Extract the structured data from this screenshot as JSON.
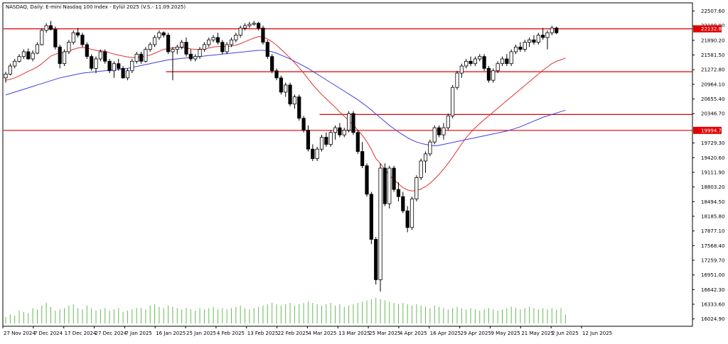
{
  "title": "NASDAQ, Daily: E-mini Nasdaq 100 Index - Eylül 2025 (V.S.- 11.09.2025)",
  "colors": {
    "background": "#ffffff",
    "candle_up_body": "#ffffff",
    "candle_down_body": "#000000",
    "candle_outline": "#000000",
    "ma_fast": "#e23030",
    "ma_slow": "#4040e0",
    "level_line": "#e00000",
    "volume": "#66bb55",
    "price_tag_bg": "#e00000",
    "price_tag_text": "#ffffff",
    "axis": "#000000"
  },
  "chart_data": {
    "type": "candlestick",
    "title": "NASDAQ, Daily: E-mini Nasdaq 100 Index - Eylül 2025 (V.S.- 11.09.2025)",
    "ylim": [
      15870,
      22680
    ],
    "y_ticks": [
      "22507.60",
      "22198.90",
      "21890.20",
      "21581.50",
      "21272.80",
      "20964.10",
      "20655.40",
      "20346.70",
      "19729.30",
      "19420.60",
      "19111.90",
      "18803.20",
      "18494.50",
      "18185.80",
      "17877.10",
      "17568.40",
      "17259.70",
      "16951.00",
      "16642.30",
      "16333.60",
      "16024.90"
    ],
    "x_tick_labels": [
      "27 Nov 2024",
      "7 Dec 2024",
      "17 Dec 2024",
      "27 Dec 2024",
      "7 Jan 2025",
      "16 Jan 2025",
      "25 Jan 2025",
      "4 Feb 2025",
      "13 Feb 2025",
      "22 Feb 2025",
      "4 Mar 2025",
      "13 Mar 2025",
      "25 Mar 2025",
      "4 Apr 2025",
      "16 Apr 2025",
      "29 Apr 2025",
      "9 May 2025",
      "21 May 2025",
      "2 Jun 2025",
      "12 Jun 2025"
    ],
    "price_tags": [
      {
        "value": 22132.8,
        "label": "22132.80"
      },
      {
        "value": 19994.75,
        "label": "19994.75"
      }
    ],
    "level_lines": [
      {
        "value": 22132.8,
        "from_index": 0
      },
      {
        "value": 21230,
        "from_index": 36
      },
      {
        "value": 20330,
        "from_index": 70
      },
      {
        "value": 19994.75,
        "from_index": 0
      }
    ],
    "candles": [
      [
        21100,
        21230,
        21000,
        21180
      ],
      [
        21180,
        21400,
        21150,
        21350
      ],
      [
        21350,
        21500,
        21300,
        21450
      ],
      [
        21450,
        21600,
        21420,
        21550
      ],
      [
        21550,
        21700,
        21500,
        21650
      ],
      [
        21650,
        21720,
        21480,
        21500
      ],
      [
        21500,
        21680,
        21450,
        21620
      ],
      [
        21620,
        21850,
        21600,
        21800
      ],
      [
        21800,
        22150,
        21780,
        22100
      ],
      [
        22100,
        22250,
        22050,
        22200
      ],
      [
        22200,
        22300,
        22100,
        22120
      ],
      [
        22120,
        22180,
        21700,
        21750
      ],
      [
        21750,
        21800,
        21300,
        21400
      ],
      [
        21400,
        21700,
        21350,
        21650
      ],
      [
        21650,
        21900,
        21600,
        21850
      ],
      [
        21850,
        22100,
        21800,
        22050
      ],
      [
        22050,
        22150,
        21950,
        22000
      ],
      [
        22000,
        22050,
        21750,
        21800
      ],
      [
        21800,
        21850,
        21500,
        21550
      ],
      [
        21550,
        21600,
        21250,
        21300
      ],
      [
        21300,
        21550,
        21200,
        21500
      ],
      [
        21500,
        21700,
        21450,
        21650
      ],
      [
        21650,
        21700,
        21400,
        21450
      ],
      [
        21450,
        21500,
        21200,
        21250
      ],
      [
        21250,
        21450,
        21100,
        21400
      ],
      [
        21400,
        21500,
        21250,
        21300
      ],
      [
        21300,
        21350,
        21080,
        21100
      ],
      [
        21100,
        21300,
        21050,
        21250
      ],
      [
        21250,
        21500,
        21200,
        21450
      ],
      [
        21450,
        21650,
        21400,
        21600
      ],
      [
        21600,
        21650,
        21400,
        21450
      ],
      [
        21450,
        21750,
        21420,
        21700
      ],
      [
        21700,
        21850,
        21650,
        21800
      ],
      [
        21800,
        22000,
        21750,
        21950
      ],
      [
        21950,
        22100,
        21900,
        22050
      ],
      [
        22050,
        22080,
        21950,
        22000
      ],
      [
        22000,
        22050,
        21600,
        21650
      ],
      [
        21650,
        21750,
        21050,
        21700
      ],
      [
        21700,
        21800,
        21600,
        21750
      ],
      [
        21750,
        21900,
        21700,
        21850
      ],
      [
        21850,
        21950,
        21550,
        21600
      ],
      [
        21600,
        21700,
        21450,
        21500
      ],
      [
        21500,
        21600,
        21450,
        21550
      ],
      [
        21550,
        21750,
        21500,
        21700
      ],
      [
        21700,
        21850,
        21650,
        21800
      ],
      [
        21800,
        21950,
        21750,
        21900
      ],
      [
        21900,
        22000,
        21850,
        21950
      ],
      [
        21950,
        22050,
        21800,
        21850
      ],
      [
        21850,
        21900,
        21600,
        21650
      ],
      [
        21650,
        21850,
        21600,
        21800
      ],
      [
        21800,
        21950,
        21750,
        21900
      ],
      [
        21900,
        22050,
        21850,
        22000
      ],
      [
        22000,
        22200,
        21950,
        22150
      ],
      [
        22150,
        22250,
        22100,
        22200
      ],
      [
        22200,
        22280,
        22150,
        22230
      ],
      [
        22230,
        22300,
        22200,
        22250
      ],
      [
        22250,
        22280,
        22100,
        22150
      ],
      [
        22150,
        22200,
        21800,
        21850
      ],
      [
        21850,
        21900,
        21500,
        21550
      ],
      [
        21550,
        21600,
        21200,
        21250
      ],
      [
        21250,
        21300,
        21050,
        21100
      ],
      [
        21100,
        21150,
        20750,
        20800
      ],
      [
        20800,
        21000,
        20700,
        20950
      ],
      [
        20950,
        21000,
        20500,
        20550
      ],
      [
        20550,
        20750,
        20450,
        20700
      ],
      [
        20700,
        20750,
        20200,
        20250
      ],
      [
        20250,
        20300,
        19950,
        20000
      ],
      [
        20000,
        20100,
        19550,
        19600
      ],
      [
        19600,
        19700,
        19350,
        19400
      ],
      [
        19400,
        19650,
        19350,
        19600
      ],
      [
        19600,
        19900,
        19550,
        19850
      ],
      [
        19850,
        19950,
        19650,
        19700
      ],
      [
        19700,
        20000,
        19650,
        19950
      ],
      [
        19950,
        20100,
        19800,
        20050
      ],
      [
        20050,
        20150,
        19850,
        19900
      ],
      [
        19900,
        20050,
        19850,
        20000
      ],
      [
        20000,
        20400,
        19950,
        20350
      ],
      [
        20350,
        20400,
        19900,
        19950
      ],
      [
        19950,
        20000,
        19500,
        19550
      ],
      [
        19550,
        19750,
        19200,
        19250
      ],
      [
        19250,
        19300,
        18600,
        18650
      ],
      [
        18650,
        18700,
        17600,
        17700
      ],
      [
        17700,
        17750,
        16750,
        16850
      ],
      [
        16850,
        19300,
        16600,
        19200
      ],
      [
        19200,
        19300,
        18400,
        18450
      ],
      [
        18450,
        19250,
        18350,
        19200
      ],
      [
        19200,
        19250,
        18700,
        18750
      ],
      [
        18750,
        18900,
        18500,
        18600
      ],
      [
        18600,
        18700,
        18250,
        18300
      ],
      [
        18300,
        18400,
        17850,
        17950
      ],
      [
        17950,
        18600,
        17900,
        18550
      ],
      [
        18550,
        19050,
        18500,
        19000
      ],
      [
        19000,
        19400,
        18950,
        19350
      ],
      [
        19350,
        19550,
        19100,
        19500
      ],
      [
        19500,
        19800,
        19450,
        19750
      ],
      [
        19750,
        20100,
        19700,
        20050
      ],
      [
        20050,
        20100,
        19850,
        19900
      ],
      [
        19900,
        20150,
        19800,
        20050
      ],
      [
        20050,
        20350,
        20000,
        20300
      ],
      [
        20300,
        20950,
        20250,
        20900
      ],
      [
        20900,
        21250,
        20850,
        21200
      ],
      [
        21200,
        21400,
        21100,
        21350
      ],
      [
        21350,
        21500,
        21300,
        21450
      ],
      [
        21450,
        21550,
        21350,
        21400
      ],
      [
        21400,
        21550,
        21350,
        21500
      ],
      [
        21500,
        21600,
        21450,
        21550
      ],
      [
        21550,
        21600,
        21250,
        21300
      ],
      [
        21300,
        21350,
        21000,
        21050
      ],
      [
        21050,
        21300,
        21000,
        21250
      ],
      [
        21250,
        21450,
        21200,
        21400
      ],
      [
        21400,
        21550,
        21350,
        21500
      ],
      [
        21500,
        21600,
        21350,
        21400
      ],
      [
        21400,
        21700,
        21350,
        21650
      ],
      [
        21650,
        21800,
        21600,
        21750
      ],
      [
        21750,
        21850,
        21650,
        21700
      ],
      [
        21700,
        21900,
        21650,
        21850
      ],
      [
        21850,
        21950,
        21750,
        21900
      ],
      [
        21900,
        22000,
        21800,
        21850
      ],
      [
        21850,
        22050,
        21800,
        22000
      ],
      [
        22000,
        22150,
        21900,
        21950
      ],
      [
        21950,
        22100,
        21700,
        22050
      ],
      [
        22050,
        22200,
        22000,
        22150
      ],
      [
        22150,
        22180,
        22020,
        22050
      ]
    ],
    "ma_fast": [
      21050,
      21070,
      21100,
      21140,
      21190,
      21240,
      21280,
      21330,
      21400,
      21480,
      21560,
      21600,
      21620,
      21640,
      21670,
      21700,
      21730,
      21740,
      21730,
      21700,
      21680,
      21670,
      21660,
      21630,
      21600,
      21580,
      21560,
      21540,
      21530,
      21530,
      21540,
      21560,
      21580,
      21620,
      21660,
      21700,
      21720,
      21730,
      21740,
      21740,
      21730,
      21710,
      21700,
      21700,
      21710,
      21730,
      21750,
      21760,
      21760,
      21760,
      21770,
      21790,
      21820,
      21860,
      21900,
      21940,
      21970,
      21960,
      21920,
      21860,
      21790,
      21700,
      21610,
      21520,
      21420,
      21310,
      21200,
      21080,
      20960,
      20850,
      20750,
      20660,
      20570,
      20480,
      20380,
      20290,
      20200,
      20110,
      20000,
      19890,
      19760,
      19590,
      19400,
      19300,
      19170,
      19050,
      18960,
      18870,
      18790,
      18740,
      18720,
      18730,
      18760,
      18810,
      18880,
      18970,
      19070,
      19180,
      19300,
      19430,
      19570,
      19710,
      19840,
      19950,
      20050,
      20140,
      20220,
      20300,
      20380,
      20460,
      20540,
      20620,
      20700,
      20780,
      20860,
      20940,
      21020,
      21100,
      21180,
      21260,
      21330,
      21400,
      21450,
      21480,
      21520
    ],
    "ma_slow": [
      20740,
      20770,
      20800,
      20830,
      20860,
      20890,
      20920,
      20950,
      20980,
      21010,
      21040,
      21070,
      21100,
      21120,
      21140,
      21160,
      21180,
      21200,
      21210,
      21220,
      21230,
      21240,
      21250,
      21260,
      21270,
      21280,
      21290,
      21300,
      21320,
      21340,
      21360,
      21380,
      21400,
      21420,
      21440,
      21460,
      21480,
      21490,
      21500,
      21510,
      21520,
      21530,
      21540,
      21550,
      21560,
      21570,
      21580,
      21590,
      21600,
      21610,
      21620,
      21630,
      21640,
      21650,
      21660,
      21670,
      21680,
      21680,
      21670,
      21650,
      21620,
      21580,
      21540,
      21500,
      21450,
      21400,
      21350,
      21300,
      21240,
      21180,
      21120,
      21060,
      21000,
      20940,
      20880,
      20820,
      20760,
      20700,
      20640,
      20570,
      20500,
      20420,
      20340,
      20260,
      20180,
      20100,
      20030,
      19960,
      19900,
      19840,
      19790,
      19750,
      19720,
      19700,
      19680,
      19670,
      19680,
      19700,
      19720,
      19740,
      19760,
      19780,
      19800,
      19820,
      19840,
      19860,
      19880,
      19900,
      19920,
      19940,
      19960,
      19980,
      20010,
      20040,
      20070,
      20110,
      20150,
      20190,
      20230,
      20270,
      20300,
      20330,
      20360,
      20390,
      20420
    ],
    "volume_ratio": [
      0.25,
      0.35,
      0.3,
      0.5,
      0.45,
      0.4,
      0.6,
      0.55,
      0.7,
      0.8,
      0.65,
      0.5,
      0.55,
      0.6,
      0.7,
      0.75,
      0.6,
      0.55,
      0.7,
      0.6,
      0.5,
      0.55,
      0.6,
      0.5,
      0.55,
      0.6,
      0.45,
      0.5,
      0.55,
      0.6,
      0.6,
      0.55,
      0.7,
      0.75,
      0.65,
      0.6,
      0.7,
      0.65,
      0.6,
      0.55,
      0.6,
      0.55,
      0.5,
      0.6,
      0.55,
      0.6,
      0.65,
      0.55,
      0.6,
      0.55,
      0.6,
      0.65,
      0.7,
      0.6,
      0.55,
      0.6,
      0.65,
      0.7,
      0.75,
      0.8,
      0.75,
      0.7,
      0.75,
      0.8,
      0.7,
      0.75,
      0.8,
      0.85,
      0.8,
      0.75,
      0.7,
      0.75,
      0.8,
      0.7,
      0.75,
      0.65,
      0.7,
      0.75,
      0.8,
      0.85,
      0.9,
      0.95,
      1.0,
      0.95,
      0.9,
      0.85,
      0.8,
      0.75,
      0.8,
      0.75,
      0.7,
      0.75,
      0.7,
      0.65,
      0.6,
      0.7,
      0.65,
      0.6,
      0.55,
      0.6,
      0.65,
      0.6,
      0.55,
      0.6,
      0.55,
      0.5,
      0.55,
      0.6,
      0.55,
      0.5,
      0.55,
      0.6,
      0.65,
      0.6,
      0.55,
      0.6,
      0.65,
      0.6,
      0.55,
      0.6,
      0.55,
      0.6,
      0.55,
      0.6,
      0.35
    ]
  }
}
